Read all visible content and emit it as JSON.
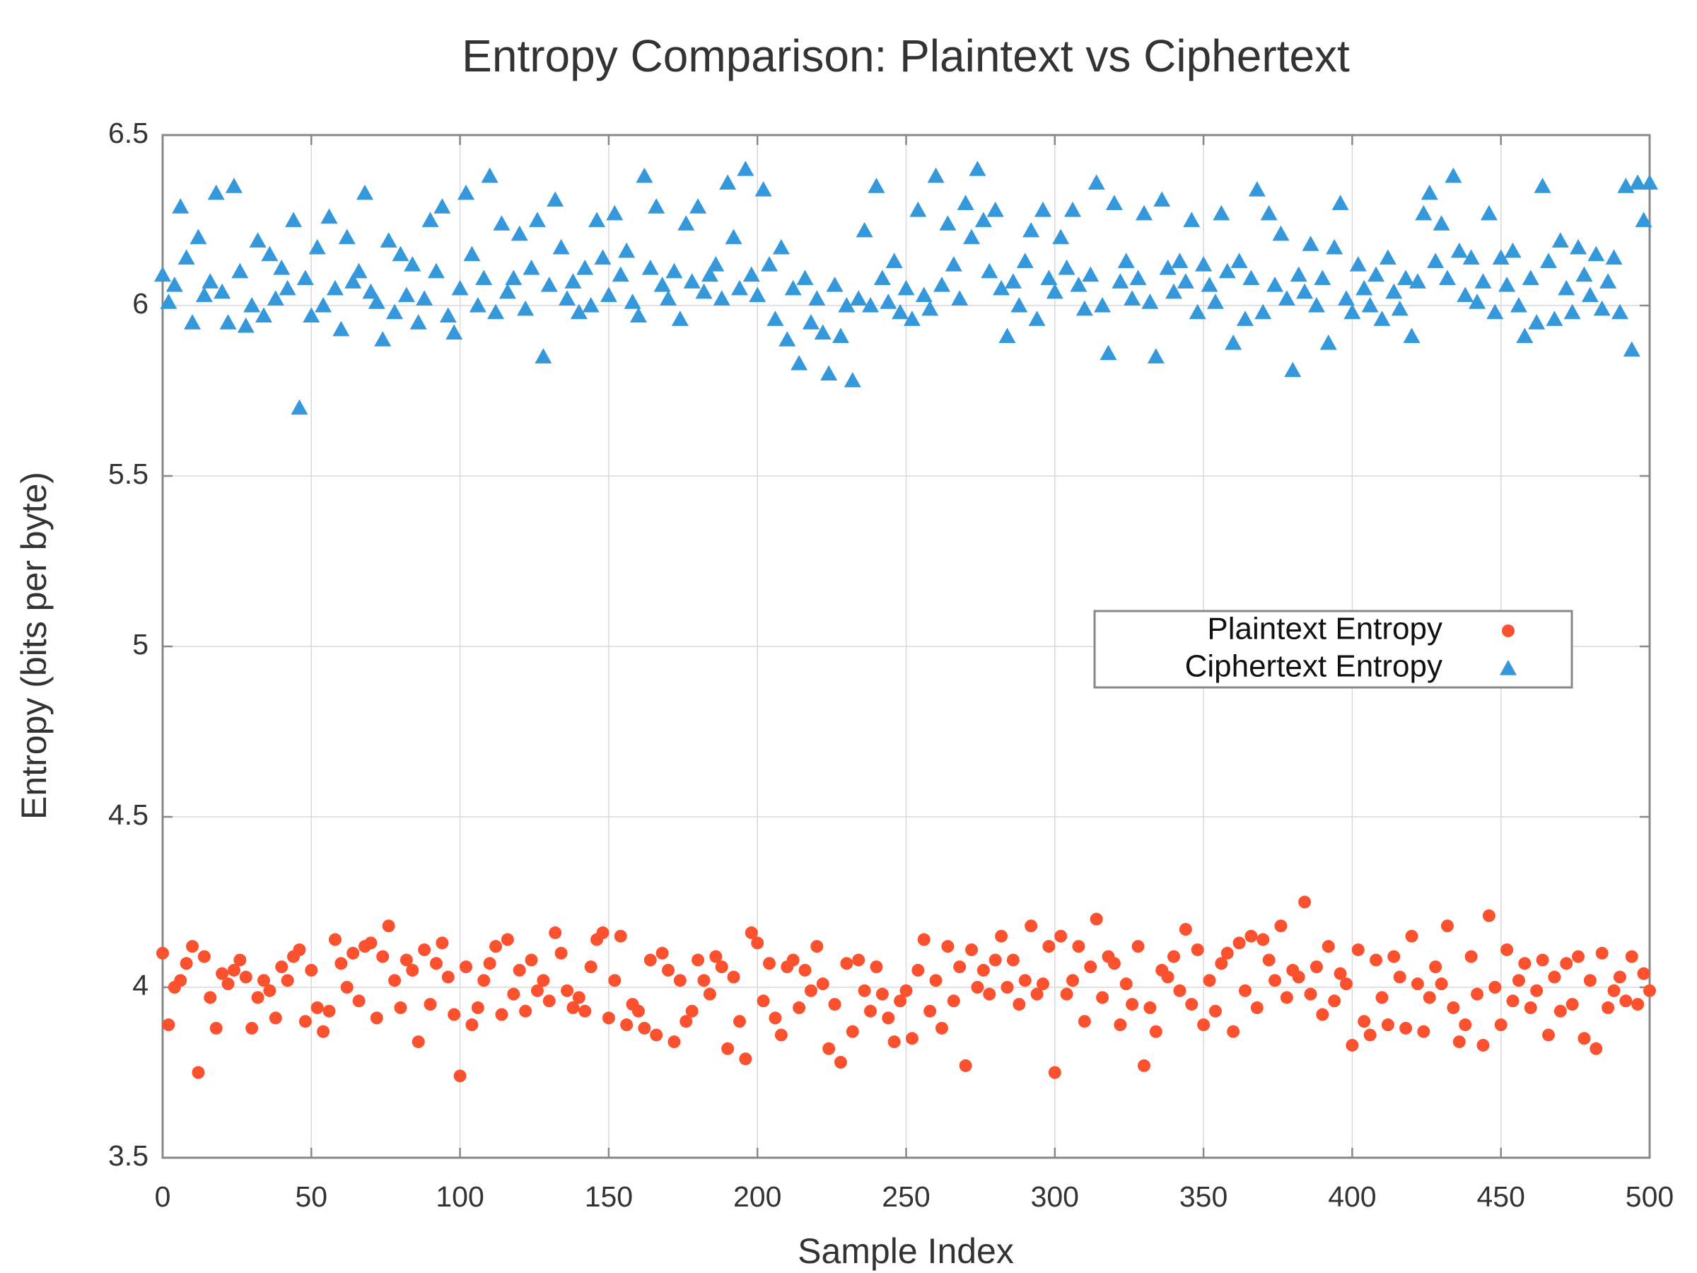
{
  "chart_data": {
    "type": "scatter",
    "title": "Entropy Comparison: Plaintext vs Ciphertext",
    "x_label": "Sample Index",
    "y_label": "Entropy (bits per byte)",
    "xlim": [
      0,
      500
    ],
    "ylim": [
      3.5,
      6.5
    ],
    "xticks": [
      0,
      50,
      100,
      150,
      200,
      250,
      300,
      350,
      400,
      450,
      500
    ],
    "yticks": [
      3.5,
      4,
      4.5,
      5,
      5.5,
      6,
      6.5
    ],
    "grid": true,
    "legend": "right",
    "x": [
      0,
      2,
      4,
      6,
      8,
      10,
      12,
      14,
      16,
      18,
      20,
      22,
      24,
      26,
      28,
      30,
      32,
      34,
      36,
      38,
      40,
      42,
      44,
      46,
      48,
      50,
      52,
      54,
      56,
      58,
      60,
      62,
      64,
      66,
      68,
      70,
      72,
      74,
      76,
      78,
      80,
      82,
      84,
      86,
      88,
      90,
      92,
      94,
      96,
      98,
      100,
      102,
      104,
      106,
      108,
      110,
      112,
      114,
      116,
      118,
      120,
      122,
      124,
      126,
      128,
      130,
      132,
      134,
      136,
      138,
      140,
      142,
      144,
      146,
      148,
      150,
      152,
      154,
      156,
      158,
      160,
      162,
      164,
      166,
      168,
      170,
      172,
      174,
      176,
      178,
      180,
      182,
      184,
      186,
      188,
      190,
      192,
      194,
      196,
      198,
      200,
      202,
      204,
      206,
      208,
      210,
      212,
      214,
      216,
      218,
      220,
      222,
      224,
      226,
      228,
      230,
      232,
      234,
      236,
      238,
      240,
      242,
      244,
      246,
      248,
      250,
      252,
      254,
      256,
      258,
      260,
      262,
      264,
      266,
      268,
      270,
      272,
      274,
      276,
      278,
      280,
      282,
      284,
      286,
      288,
      290,
      292,
      294,
      296,
      298,
      300,
      302,
      304,
      306,
      308,
      310,
      312,
      314,
      316,
      318,
      320,
      322,
      324,
      326,
      328,
      330,
      332,
      334,
      336,
      338,
      340,
      342,
      344,
      346,
      348,
      350,
      352,
      354,
      356,
      358,
      360,
      362,
      364,
      366,
      368,
      370,
      372,
      374,
      376,
      378,
      380,
      382,
      384,
      386,
      388,
      390,
      392,
      394,
      396,
      398,
      400,
      402,
      404,
      406,
      408,
      410,
      412,
      414,
      416,
      418,
      420,
      422,
      424,
      426,
      428,
      430,
      432,
      434,
      436,
      438,
      440,
      442,
      444,
      446,
      448,
      450,
      452,
      454,
      456,
      458,
      460,
      462,
      464,
      466,
      468,
      470,
      472,
      474,
      476,
      478,
      480,
      482,
      484,
      486,
      488,
      490,
      492,
      494,
      496,
      498,
      500
    ],
    "series": [
      {
        "name": "Plaintext Entropy",
        "color": "#fb512f",
        "marker": "circle",
        "values": [
          4.1,
          3.89,
          4.0,
          4.02,
          4.07,
          4.12,
          3.75,
          4.09,
          3.97,
          3.88,
          4.04,
          4.01,
          4.05,
          4.08,
          4.03,
          3.88,
          3.97,
          4.02,
          3.99,
          3.91,
          4.06,
          4.02,
          4.09,
          4.11,
          3.9,
          4.05,
          3.94,
          3.87,
          3.93,
          4.14,
          4.07,
          4.0,
          4.1,
          3.96,
          4.12,
          4.13,
          3.91,
          4.09,
          4.18,
          4.02,
          3.94,
          4.08,
          4.05,
          3.84,
          4.11,
          3.95,
          4.07,
          4.13,
          4.03,
          3.92,
          3.74,
          4.06,
          3.89,
          3.94,
          4.02,
          4.07,
          4.12,
          3.92,
          4.14,
          3.98,
          4.05,
          3.93,
          4.08,
          3.99,
          4.02,
          3.96,
          4.16,
          4.1,
          3.99,
          3.94,
          3.97,
          3.93,
          4.06,
          4.14,
          4.16,
          3.91,
          4.02,
          4.15,
          3.89,
          3.95,
          3.93,
          3.88,
          4.08,
          3.86,
          4.1,
          4.05,
          3.84,
          4.02,
          3.9,
          3.93,
          4.08,
          4.02,
          3.98,
          4.09,
          4.06,
          3.82,
          4.03,
          3.9,
          3.79,
          4.16,
          4.13,
          3.96,
          4.07,
          3.91,
          3.86,
          4.06,
          4.08,
          3.94,
          4.05,
          3.99,
          4.12,
          4.01,
          3.82,
          3.95,
          3.78,
          4.07,
          3.87,
          4.08,
          3.99,
          3.93,
          4.06,
          3.98,
          3.91,
          3.84,
          3.96,
          3.99,
          3.85,
          4.05,
          4.14,
          3.93,
          4.02,
          3.88,
          4.12,
          3.96,
          4.06,
          3.77,
          4.11,
          4.0,
          4.05,
          3.98,
          4.08,
          4.15,
          4.0,
          4.08,
          3.95,
          4.02,
          4.18,
          3.98,
          4.01,
          4.12,
          3.75,
          4.15,
          3.98,
          4.02,
          4.12,
          3.9,
          4.06,
          4.2,
          3.97,
          4.09,
          4.07,
          3.89,
          4.01,
          3.95,
          4.12,
          3.77,
          3.94,
          3.87,
          4.05,
          4.03,
          4.09,
          3.99,
          4.17,
          3.95,
          4.11,
          3.89,
          4.02,
          3.93,
          4.07,
          4.1,
          3.87,
          4.13,
          3.99,
          4.15,
          3.94,
          4.14,
          4.08,
          4.02,
          4.18,
          3.97,
          4.05,
          4.03,
          4.25,
          3.98,
          4.06,
          3.92,
          4.12,
          3.96,
          4.04,
          4.01,
          3.83,
          4.11,
          3.9,
          3.86,
          4.08,
          3.97,
          3.89,
          4.09,
          4.03,
          3.88,
          4.15,
          4.01,
          3.87,
          3.97,
          4.06,
          4.01,
          4.18,
          3.94,
          3.84,
          3.89,
          4.09,
          3.98,
          3.83,
          4.21,
          4.0,
          3.89,
          4.11,
          3.96,
          4.02,
          4.07,
          3.94,
          3.99,
          4.08,
          3.86,
          4.03,
          3.93,
          4.07,
          3.95,
          4.09,
          3.85,
          4.02,
          3.82,
          4.1,
          3.94,
          3.99,
          4.03,
          3.96,
          4.09,
          3.95,
          4.04,
          3.99
        ]
      },
      {
        "name": "Ciphertext Entropy",
        "color": "#3498db",
        "marker": "triangle",
        "values": [
          6.09,
          6.01,
          6.06,
          6.29,
          6.14,
          5.95,
          6.2,
          6.03,
          6.07,
          6.33,
          6.04,
          5.95,
          6.35,
          6.1,
          5.94,
          6.0,
          6.19,
          5.97,
          6.15,
          6.02,
          6.11,
          6.05,
          6.25,
          5.7,
          6.08,
          5.97,
          6.17,
          6.0,
          6.26,
          6.05,
          5.93,
          6.2,
          6.07,
          6.1,
          6.33,
          6.04,
          6.01,
          5.9,
          6.19,
          5.98,
          6.15,
          6.03,
          6.12,
          5.95,
          6.02,
          6.25,
          6.1,
          6.29,
          5.97,
          5.92,
          6.05,
          6.33,
          6.15,
          6.0,
          6.08,
          6.38,
          5.98,
          6.24,
          6.04,
          6.08,
          6.21,
          5.99,
          6.11,
          6.25,
          5.85,
          6.06,
          6.31,
          6.17,
          6.02,
          6.07,
          5.98,
          6.11,
          6.0,
          6.25,
          6.14,
          6.03,
          6.27,
          6.09,
          6.16,
          6.01,
          5.97,
          6.38,
          6.11,
          6.29,
          6.06,
          6.02,
          6.1,
          5.96,
          6.24,
          6.07,
          6.29,
          6.04,
          6.09,
          6.12,
          6.02,
          6.36,
          6.2,
          6.05,
          6.4,
          6.09,
          6.03,
          6.34,
          6.12,
          5.96,
          6.17,
          5.9,
          6.05,
          5.83,
          6.08,
          5.95,
          6.02,
          5.92,
          5.8,
          6.06,
          5.91,
          6.0,
          5.78,
          6.02,
          6.22,
          6.0,
          6.35,
          6.08,
          6.01,
          6.13,
          5.98,
          6.05,
          5.96,
          6.28,
          6.03,
          5.99,
          6.38,
          6.06,
          6.24,
          6.12,
          6.02,
          6.3,
          6.2,
          6.4,
          6.25,
          6.1,
          6.28,
          6.05,
          5.91,
          6.07,
          6.0,
          6.13,
          6.22,
          5.96,
          6.28,
          6.08,
          6.04,
          6.2,
          6.11,
          6.28,
          6.06,
          5.99,
          6.09,
          6.36,
          6.0,
          5.86,
          6.3,
          6.07,
          6.13,
          6.02,
          6.08,
          6.27,
          6.01,
          5.85,
          6.31,
          6.11,
          6.04,
          6.13,
          6.07,
          6.25,
          5.98,
          6.12,
          6.06,
          6.01,
          6.27,
          6.1,
          5.89,
          6.13,
          5.96,
          6.08,
          6.34,
          5.98,
          6.27,
          6.06,
          6.21,
          6.02,
          5.81,
          6.09,
          6.04,
          6.18,
          6.0,
          6.08,
          5.89,
          6.17,
          6.3,
          6.02,
          5.98,
          6.12,
          6.05,
          6.0,
          6.09,
          5.96,
          6.14,
          6.04,
          5.99,
          6.08,
          5.91,
          6.07,
          6.27,
          6.33,
          6.13,
          6.24,
          6.08,
          6.38,
          6.16,
          6.03,
          6.14,
          6.01,
          6.07,
          6.27,
          5.98,
          6.14,
          6.06,
          6.16,
          6.0,
          5.91,
          6.08,
          5.95,
          6.35,
          6.13,
          5.96,
          6.19,
          6.05,
          5.98,
          6.17,
          6.09,
          6.03,
          6.15,
          5.99,
          6.07,
          6.14,
          5.98,
          6.35,
          5.87,
          6.36,
          6.25,
          6.36
        ]
      }
    ]
  }
}
